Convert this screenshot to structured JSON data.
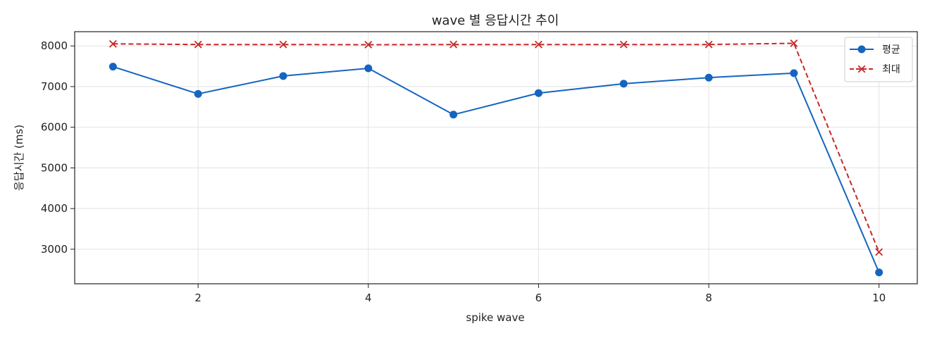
{
  "chart_data": {
    "type": "line",
    "title": "wave 별 응답시간 추이",
    "xlabel": "spike wave",
    "ylabel": "응답시간 (ms)",
    "x": [
      1,
      2,
      3,
      4,
      5,
      6,
      7,
      8,
      9,
      10
    ],
    "xlim": [
      0.55,
      10.45
    ],
    "ylim": [
      2150,
      8350
    ],
    "xticks": [
      2,
      4,
      6,
      8,
      10
    ],
    "xtick_labels": [
      "2",
      "4",
      "6",
      "8",
      "10"
    ],
    "yticks": [
      3000,
      4000,
      5000,
      6000,
      7000,
      8000
    ],
    "ytick_labels": [
      "3000",
      "4000",
      "5000",
      "6000",
      "7000",
      "8000"
    ],
    "grid": true,
    "legend_position": "top-right",
    "series": [
      {
        "name": "평균",
        "color": "#1565c0",
        "line_style": "solid",
        "marker": "circle",
        "values": [
          7490,
          6820,
          7260,
          7450,
          6310,
          6840,
          7070,
          7220,
          7330,
          2430
        ]
      },
      {
        "name": "최대",
        "color": "#c62828",
        "line_style": "dashed",
        "marker": "x",
        "values": [
          8050,
          8035,
          8035,
          8030,
          8035,
          8035,
          8035,
          8035,
          8065,
          2930
        ]
      }
    ]
  }
}
